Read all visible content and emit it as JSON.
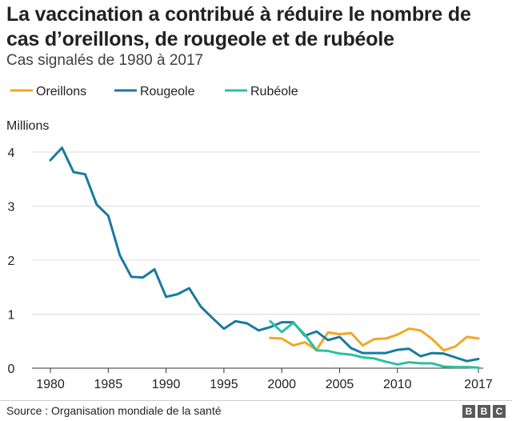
{
  "title": "La vaccination a contribué à réduire le nombre de cas d’oreillons, de rougeole et de rubéole",
  "subtitle": "Cas signalés de 1980 à 2017",
  "source": "Source : Organisation mondiale de la santé",
  "logo_letters": [
    "B",
    "B",
    "C"
  ],
  "chart_data": {
    "type": "line",
    "ylabel": "Millions",
    "xlim": [
      1980,
      2017
    ],
    "ylim": [
      0,
      4.2
    ],
    "x_ticks": [
      1980,
      1985,
      1990,
      1995,
      2000,
      2005,
      2010,
      2017
    ],
    "y_ticks": [
      0,
      1,
      2,
      3,
      4
    ],
    "grid": "horizontal",
    "legend_position": "top-left",
    "series": [
      {
        "name": "Oreillons",
        "color": "#f5a524",
        "x": [
          1999,
          2000,
          2001,
          2002,
          2003,
          2004,
          2005,
          2006,
          2007,
          2008,
          2009,
          2010,
          2011,
          2012,
          2013,
          2014,
          2015,
          2016,
          2017
        ],
        "values": [
          0.56,
          0.55,
          0.42,
          0.48,
          0.34,
          0.66,
          0.63,
          0.65,
          0.42,
          0.54,
          0.55,
          0.62,
          0.73,
          0.7,
          0.54,
          0.33,
          0.4,
          0.58,
          0.55
        ]
      },
      {
        "name": "Rougeole",
        "color": "#1a7aa0",
        "x": [
          1980,
          1981,
          1982,
          1983,
          1984,
          1985,
          1986,
          1987,
          1988,
          1989,
          1990,
          1991,
          1992,
          1993,
          1994,
          1995,
          1996,
          1997,
          1998,
          1999,
          2000,
          2001,
          2002,
          2003,
          2004,
          2005,
          2006,
          2007,
          2008,
          2009,
          2010,
          2011,
          2012,
          2013,
          2014,
          2015,
          2016,
          2017
        ],
        "values": [
          3.85,
          4.08,
          3.63,
          3.59,
          3.03,
          2.82,
          2.09,
          1.69,
          1.68,
          1.83,
          1.32,
          1.37,
          1.48,
          1.14,
          0.93,
          0.73,
          0.87,
          0.83,
          0.7,
          0.76,
          0.85,
          0.85,
          0.6,
          0.68,
          0.52,
          0.58,
          0.37,
          0.28,
          0.28,
          0.28,
          0.34,
          0.36,
          0.22,
          0.28,
          0.27,
          0.2,
          0.13,
          0.17
        ]
      },
      {
        "name": "Rubéole",
        "color": "#2cc0a0",
        "x": [
          1999,
          2000,
          2001,
          2002,
          2003,
          2004,
          2005,
          2006,
          2007,
          2008,
          2009,
          2010,
          2011,
          2012,
          2013,
          2014,
          2015,
          2016,
          2017
        ],
        "values": [
          0.87,
          0.67,
          0.84,
          0.62,
          0.33,
          0.32,
          0.27,
          0.25,
          0.2,
          0.18,
          0.12,
          0.07,
          0.11,
          0.09,
          0.09,
          0.03,
          0.02,
          0.02,
          0.01
        ]
      }
    ]
  }
}
